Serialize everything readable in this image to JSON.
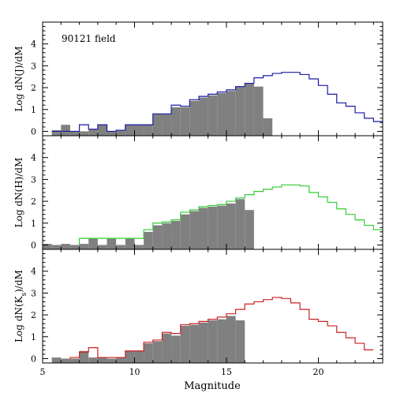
{
  "chart_data": [
    {
      "type": "bar",
      "annotation": "90121 field",
      "ylabel": "Log dN(J)/dM",
      "xlim": [
        5,
        23.5
      ],
      "ylim": [
        -0.2,
        5
      ],
      "yticks": [
        0,
        1,
        2,
        3,
        4
      ],
      "grid": false,
      "series": [
        {
          "kind": "filled",
          "color": "#808080",
          "bin_edges": [
            5.5,
            6.0,
            6.5,
            7.0,
            7.5,
            8.0,
            8.5,
            9.0,
            9.5,
            10.0,
            10.5,
            11.0,
            11.5,
            12.0,
            12.5,
            13.0,
            13.5,
            14.0,
            14.5,
            15.0,
            15.5,
            16.0,
            16.5,
            17.0,
            17.5
          ],
          "values": [
            0.05,
            0.3,
            0.0,
            0.0,
            0.1,
            0.3,
            0.0,
            0.05,
            0.3,
            0.3,
            0.3,
            0.8,
            0.8,
            1.1,
            1.1,
            1.4,
            1.55,
            1.65,
            1.75,
            1.85,
            2.05,
            2.2,
            2.05,
            0.6
          ]
        },
        {
          "kind": "outline",
          "color": "#1a1aa6",
          "bin_edges": [
            5.5,
            6.0,
            6.5,
            7.0,
            7.5,
            8.0,
            8.5,
            9.0,
            9.5,
            10.0,
            10.5,
            11.0,
            11.5,
            12.0,
            12.5,
            13.0,
            13.5,
            14.0,
            14.5,
            15.0,
            15.5,
            16.0,
            16.5,
            17.0,
            17.5,
            18.0,
            18.5,
            19.0,
            19.5,
            20.0,
            20.5,
            21.0,
            21.5,
            22.0,
            22.5,
            23.0,
            23.5
          ],
          "values": [
            0.0,
            0.0,
            0.0,
            0.3,
            0.1,
            0.3,
            0.0,
            0.05,
            0.3,
            0.3,
            0.3,
            0.8,
            0.8,
            1.2,
            1.15,
            1.45,
            1.6,
            1.7,
            1.8,
            1.9,
            2.05,
            2.2,
            2.45,
            2.55,
            2.65,
            2.7,
            2.7,
            2.6,
            2.4,
            2.1,
            1.7,
            1.3,
            1.15,
            0.85,
            0.6,
            0.45
          ]
        }
      ]
    },
    {
      "type": "bar",
      "ylabel": "Log dN(H)/dM",
      "xlim": [
        5,
        23.5
      ],
      "ylim": [
        -0.2,
        5
      ],
      "yticks": [
        0,
        1,
        2,
        3,
        4
      ],
      "grid": false,
      "series": [
        {
          "kind": "filled",
          "color": "#808080",
          "bin_edges": [
            5.0,
            5.5,
            6.0,
            6.5,
            7.0,
            7.5,
            8.0,
            8.5,
            9.0,
            9.5,
            10.0,
            10.5,
            11.0,
            11.5,
            12.0,
            12.5,
            13.0,
            13.5,
            14.0,
            14.5,
            15.0,
            15.5,
            16.0,
            16.5
          ],
          "values": [
            0.05,
            0.0,
            0.05,
            0.0,
            0.05,
            0.3,
            0.0,
            0.3,
            0.0,
            0.3,
            0.0,
            0.6,
            0.9,
            1.0,
            1.1,
            1.4,
            1.55,
            1.7,
            1.75,
            1.8,
            1.9,
            2.1,
            1.6
          ]
        },
        {
          "kind": "outline",
          "color": "#33cc33",
          "bin_edges": [
            7.0,
            7.5,
            8.0,
            8.5,
            9.0,
            9.5,
            10.0,
            10.5,
            11.0,
            11.5,
            12.0,
            12.5,
            13.0,
            13.5,
            14.0,
            14.5,
            15.0,
            15.5,
            16.0,
            16.5,
            17.0,
            17.5,
            18.0,
            18.5,
            19.0,
            19.5,
            20.0,
            20.5,
            21.0,
            21.5,
            22.0,
            22.5,
            23.0,
            23.5
          ],
          "values": [
            0.3,
            0.3,
            0.3,
            0.3,
            0.3,
            0.3,
            0.3,
            0.7,
            1.0,
            1.05,
            1.15,
            1.5,
            1.6,
            1.75,
            1.8,
            1.85,
            2.0,
            2.15,
            2.3,
            2.45,
            2.55,
            2.65,
            2.75,
            2.75,
            2.7,
            2.4,
            2.2,
            1.95,
            1.65,
            1.4,
            1.15,
            0.9,
            0.7
          ]
        }
      ]
    },
    {
      "type": "bar",
      "ylabel": "Log dN(K_s)/dM",
      "xlabel": "Magnitude",
      "xlim": [
        5,
        23.5
      ],
      "ylim": [
        -0.2,
        5
      ],
      "yticks": [
        0,
        1,
        2,
        3,
        4
      ],
      "xticks": [
        5,
        10,
        15,
        20
      ],
      "grid": false,
      "series": [
        {
          "kind": "filled",
          "color": "#808080",
          "bin_edges": [
            5.5,
            6.0,
            6.5,
            7.0,
            7.5,
            8.0,
            8.5,
            9.0,
            9.5,
            10.0,
            10.5,
            11.0,
            11.5,
            12.0,
            12.5,
            13.0,
            13.5,
            14.0,
            14.5,
            15.0,
            15.5,
            16.0
          ],
          "values": [
            0.05,
            0.0,
            0.0,
            0.35,
            0.05,
            0.05,
            0.0,
            0.05,
            0.35,
            0.35,
            0.7,
            0.8,
            1.15,
            1.05,
            1.5,
            1.55,
            1.65,
            1.75,
            1.8,
            1.95,
            1.75
          ]
        },
        {
          "kind": "outline",
          "color": "#cc2222",
          "bin_edges": [
            6.5,
            7.0,
            7.5,
            8.0,
            8.5,
            9.0,
            9.5,
            10.0,
            10.5,
            11.0,
            11.5,
            12.0,
            12.5,
            13.0,
            13.5,
            14.0,
            14.5,
            15.0,
            15.5,
            16.0,
            16.5,
            17.0,
            17.5,
            18.0,
            18.5,
            19.0,
            19.5,
            20.0,
            20.5,
            21.0,
            21.5,
            22.0,
            22.5,
            23.0
          ],
          "values": [
            0.05,
            0.3,
            0.5,
            0.05,
            0.05,
            0.05,
            0.35,
            0.35,
            0.75,
            0.85,
            1.2,
            1.15,
            1.55,
            1.6,
            1.7,
            1.8,
            1.9,
            2.05,
            2.25,
            2.5,
            2.6,
            2.7,
            2.8,
            2.75,
            2.55,
            2.25,
            1.8,
            1.7,
            1.5,
            1.2,
            0.95,
            0.7,
            0.4
          ]
        }
      ]
    }
  ]
}
